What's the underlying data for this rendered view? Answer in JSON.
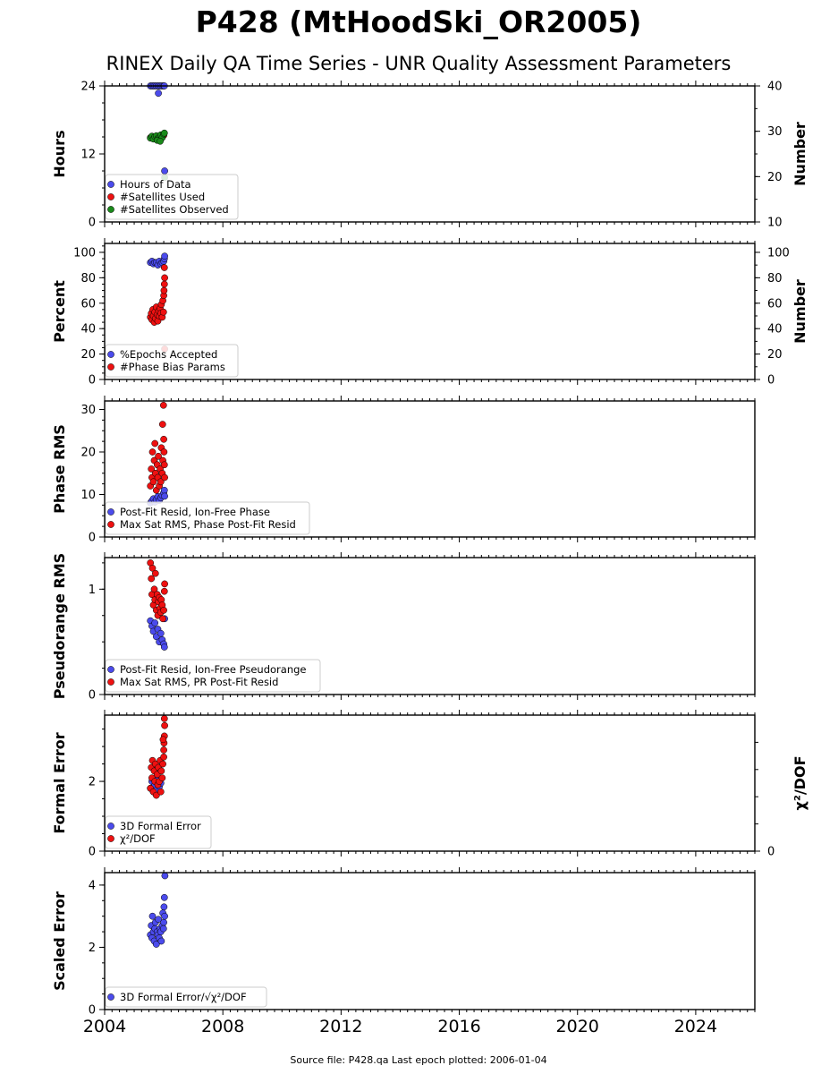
{
  "page": {
    "title": "P428 (MtHoodSki_OR2005)",
    "subtitle": "RINEX Daily QA Time Series - UNR Quality Assessment Parameters",
    "footer": "Source file: P428.qa Last epoch plotted: 2006-01-04"
  },
  "colors": {
    "blue": "#4b4bec",
    "red": "#ee1111",
    "green": "#1a8a1a",
    "frame": "#000000"
  },
  "chart_data": [
    {
      "type": "scatter",
      "panel": "hours",
      "ylabel": "Hours",
      "ylim": [
        0,
        24
      ],
      "yticks": [
        0,
        12,
        24
      ],
      "ylabel_right": "Number",
      "ylim_right": [
        10,
        40
      ],
      "yticks_right": [
        10,
        20,
        30,
        40
      ],
      "xlim": [
        2004.0,
        2026.0
      ],
      "legend": "lower-left",
      "series": [
        {
          "name": "Hours of Data",
          "color": "blue",
          "axis": "left",
          "x": [
            2005.55,
            2005.6,
            2005.65,
            2005.7,
            2005.75,
            2005.8,
            2005.85,
            2005.9,
            2005.95,
            2006.0,
            2006.02,
            2005.82,
            2006.03
          ],
          "y": [
            24,
            24,
            24,
            24,
            24,
            24,
            24,
            24,
            24,
            24,
            24,
            22.7,
            9
          ]
        },
        {
          "name": "#Satellites Used",
          "color": "red",
          "axis": "right",
          "x": [
            2005.55,
            2005.6,
            2005.65,
            2005.7,
            2005.75,
            2005.8,
            2005.85,
            2005.9,
            2005.95,
            2006.0
          ],
          "y": [
            28.6,
            28.8,
            28.4,
            28.7,
            28.9,
            28.5,
            28.6,
            29.0,
            28.8,
            29.1
          ]
        },
        {
          "name": "#Satellites Observed",
          "color": "green",
          "axis": "right",
          "x": [
            2005.55,
            2005.6,
            2005.65,
            2005.7,
            2005.75,
            2005.8,
            2005.85,
            2005.9,
            2005.95,
            2006.0,
            2006.02,
            2006.03,
            2005.78,
            2005.88
          ],
          "y": [
            28.5,
            28.9,
            28.3,
            28.8,
            29.0,
            28.4,
            28.7,
            29.2,
            28.6,
            29.4,
            29.6,
            19.8,
            28.0,
            27.8
          ]
        }
      ]
    },
    {
      "type": "scatter",
      "panel": "percent",
      "ylabel": "Percent",
      "ylim": [
        0,
        107
      ],
      "yticks": [
        0,
        20,
        40,
        60,
        80,
        100
      ],
      "ylabel_right": "Number",
      "ylim_right": [
        0,
        107
      ],
      "yticks_right": [
        0,
        20,
        40,
        60,
        80,
        100
      ],
      "xlim": [
        2004.0,
        2026.0
      ],
      "legend": "lower-left",
      "series": [
        {
          "name": "%Epochs Accepted",
          "color": "blue",
          "axis": "left",
          "x": [
            2005.55,
            2005.6,
            2005.65,
            2005.7,
            2005.75,
            2005.8,
            2005.85,
            2005.9,
            2005.95,
            2006.0,
            2006.02,
            2006.03
          ],
          "y": [
            92,
            93,
            91,
            92,
            92,
            90,
            93,
            91,
            92,
            93,
            95,
            97
          ]
        },
        {
          "name": "#Phase Bias Params",
          "color": "red",
          "axis": "right",
          "x": [
            2005.55,
            2005.58,
            2005.6,
            2005.63,
            2005.65,
            2005.68,
            2005.7,
            2005.72,
            2005.75,
            2005.78,
            2005.8,
            2005.83,
            2005.85,
            2005.88,
            2005.9,
            2005.92,
            2005.95,
            2005.97,
            2006.0,
            2006.01,
            2006.02,
            2006.03,
            2006.02,
            2005.99,
            2006.03
          ],
          "y": [
            49,
            52,
            47,
            55,
            50,
            45,
            53,
            48,
            57,
            51,
            46,
            54,
            50,
            56,
            52,
            59,
            49,
            62,
            66,
            70,
            75,
            80,
            88,
            53,
            24
          ]
        }
      ]
    },
    {
      "type": "scatter",
      "panel": "phase-rms",
      "ylabel": "Phase RMS",
      "ylim": [
        0,
        32
      ],
      "yticks": [
        0,
        10,
        20,
        30
      ],
      "xlim": [
        2004.0,
        2026.0
      ],
      "legend": "lower-left",
      "series": [
        {
          "name": "Post-Fit Resid, Ion-Free Phase",
          "color": "blue",
          "axis": "left",
          "x": [
            2005.55,
            2005.6,
            2005.65,
            2005.7,
            2005.75,
            2005.8,
            2005.85,
            2005.9,
            2005.95,
            2006.0,
            2006.02,
            2006.03
          ],
          "y": [
            8,
            8.5,
            9,
            8.2,
            8.8,
            9.5,
            8.6,
            9.2,
            9.8,
            10.4,
            11,
            9.6
          ]
        },
        {
          "name": "Max Sat RMS, Phase Post-Fit Resid",
          "color": "red",
          "axis": "left",
          "x": [
            2005.55,
            2005.58,
            2005.6,
            2005.62,
            2005.65,
            2005.68,
            2005.7,
            2005.72,
            2005.75,
            2005.78,
            2005.8,
            2005.82,
            2005.85,
            2005.88,
            2005.9,
            2005.92,
            2005.95,
            2005.97,
            2006.0,
            2006.01,
            2006.02,
            2006.03,
            2005.99,
            2005.96
          ],
          "y": [
            12,
            16,
            14,
            20,
            13,
            18,
            22,
            15,
            11,
            17,
            14,
            19,
            12,
            16,
            13,
            21,
            15,
            18,
            23,
            20,
            17,
            14,
            31,
            26.5
          ]
        }
      ]
    },
    {
      "type": "scatter",
      "panel": "pseudorange-rms",
      "ylabel": "Pseudorange RMS",
      "ylim": [
        0,
        1.3
      ],
      "yticks": [
        0,
        1
      ],
      "xlim": [
        2004.0,
        2026.0
      ],
      "legend": "lower-left",
      "series": [
        {
          "name": "Post-Fit Resid, Ion-Free Pseudorange",
          "color": "blue",
          "axis": "left",
          "x": [
            2005.55,
            2005.6,
            2005.65,
            2005.7,
            2005.75,
            2005.8,
            2005.85,
            2005.9,
            2005.95,
            2006.0,
            2006.02,
            2006.03
          ],
          "y": [
            0.7,
            0.65,
            0.6,
            0.68,
            0.55,
            0.62,
            0.5,
            0.58,
            0.52,
            0.48,
            0.45,
            0.72
          ]
        },
        {
          "name": "Max Sat RMS, PR Post-Fit Resid",
          "color": "red",
          "axis": "left",
          "x": [
            2005.55,
            2005.58,
            2005.6,
            2005.62,
            2005.65,
            2005.68,
            2005.7,
            2005.72,
            2005.75,
            2005.78,
            2005.8,
            2005.82,
            2005.85,
            2005.88,
            2005.9,
            2005.92,
            2005.95,
            2005.97,
            2006.0,
            2006.02,
            2006.03
          ],
          "y": [
            1.25,
            1.1,
            0.95,
            1.2,
            0.85,
            1.0,
            0.9,
            1.15,
            0.8,
            0.95,
            0.75,
            0.88,
            0.92,
            0.82,
            0.78,
            0.9,
            0.85,
            0.72,
            0.8,
            0.98,
            1.05
          ]
        }
      ]
    },
    {
      "type": "scatter",
      "panel": "formal-error",
      "ylabel": "Formal Error",
      "ylim": [
        0,
        3.9
      ],
      "yticks": [
        0,
        2
      ],
      "ylabel_right": "χ²/DOF",
      "yticks_right": [
        0
      ],
      "xlim": [
        2004.0,
        2026.0
      ],
      "legend": "lower-left",
      "series": [
        {
          "name": "3D Formal Error",
          "color": "blue",
          "axis": "left",
          "x": [
            2005.55,
            2005.6,
            2005.65,
            2005.7,
            2005.75,
            2005.8,
            2005.85,
            2005.9
          ],
          "y": [
            1.8,
            2.0,
            1.7,
            1.9,
            1.75,
            2.1,
            1.85,
            1.95
          ]
        },
        {
          "name": "χ²/DOF",
          "color": "red",
          "axis": "left",
          "x": [
            2005.55,
            2005.58,
            2005.6,
            2005.62,
            2005.65,
            2005.68,
            2005.7,
            2005.72,
            2005.75,
            2005.78,
            2005.8,
            2005.82,
            2005.85,
            2005.88,
            2005.9,
            2005.92,
            2005.95,
            2005.97,
            2006.0,
            2006.01,
            2006.02,
            2006.03,
            2006.02,
            2006.0,
            2005.98
          ],
          "y": [
            1.8,
            2.4,
            2.1,
            2.6,
            1.7,
            2.3,
            2.0,
            2.5,
            1.6,
            2.2,
            1.9,
            2.4,
            2.0,
            2.6,
            1.7,
            2.3,
            2.1,
            2.5,
            2.7,
            3.1,
            3.3,
            3.6,
            3.8,
            2.9,
            3.2
          ]
        }
      ]
    },
    {
      "type": "scatter",
      "panel": "scaled-error",
      "ylabel": "Scaled Error",
      "ylim": [
        0,
        4.4
      ],
      "yticks": [
        0,
        2,
        4
      ],
      "xlim": [
        2004.0,
        2026.0
      ],
      "xticks": [
        2004,
        2008,
        2012,
        2016,
        2020,
        2024
      ],
      "legend": "lower-left",
      "series": [
        {
          "name": "3D Formal Error/√χ²/DOF",
          "color": "blue",
          "axis": "left",
          "x": [
            2005.55,
            2005.58,
            2005.6,
            2005.62,
            2005.65,
            2005.68,
            2005.7,
            2005.72,
            2005.75,
            2005.78,
            2005.8,
            2005.82,
            2005.85,
            2005.88,
            2005.9,
            2005.92,
            2005.95,
            2005.97,
            2006.0,
            2006.01,
            2006.02,
            2006.03,
            2006.04,
            2005.99
          ],
          "y": [
            2.4,
            2.7,
            2.3,
            3.0,
            2.5,
            2.2,
            2.6,
            2.8,
            2.1,
            2.5,
            2.4,
            2.9,
            2.3,
            2.6,
            2.5,
            2.2,
            2.7,
            3.1,
            2.8,
            3.3,
            3.6,
            3.0,
            4.3,
            2.6
          ]
        }
      ]
    }
  ]
}
